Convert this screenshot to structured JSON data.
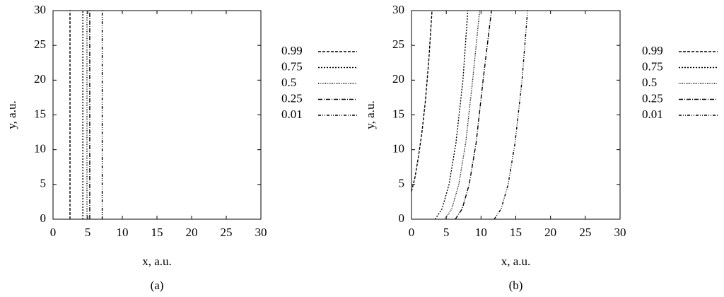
{
  "chart_data": [
    {
      "type": "line",
      "caption": "(a)",
      "x_label": "x, a.u.",
      "y_label": "y, a.u.",
      "xlim": [
        0,
        30
      ],
      "ylim": [
        0,
        30
      ],
      "xticks": [
        0,
        5,
        10,
        15,
        20,
        25,
        30
      ],
      "yticks": [
        0,
        5,
        10,
        15,
        20,
        25,
        30
      ],
      "series": [
        {
          "name": "0.99",
          "color": "#000000",
          "dash": "4,2",
          "x": [
            2.45,
            2.45
          ],
          "values": [
            0,
            30
          ]
        },
        {
          "name": "0.75",
          "color": "#000000",
          "dash": "2,2",
          "x": [
            4.3,
            4.3
          ],
          "values": [
            0,
            30
          ]
        },
        {
          "name": "0.5",
          "color": "#000000",
          "dash": "1,1.5",
          "x": [
            4.9,
            4.9
          ],
          "values": [
            0,
            30
          ]
        },
        {
          "name": "0.25",
          "color": "#000000",
          "dash": "6,2,1,2",
          "x": [
            5.3,
            5.3
          ],
          "values": [
            0,
            30
          ]
        },
        {
          "name": "0.01",
          "color": "#000000",
          "dash": "4,2,1,2,1,2",
          "x": [
            7.1,
            7.1
          ],
          "values": [
            0,
            30
          ]
        }
      ]
    },
    {
      "type": "line",
      "caption": "(b)",
      "x_label": "x, a.u.",
      "y_label": "y, a.u.",
      "xlim": [
        0,
        30
      ],
      "ylim": [
        0,
        30
      ],
      "xticks": [
        0,
        5,
        10,
        15,
        20,
        25,
        30
      ],
      "yticks": [
        0,
        5,
        10,
        15,
        20,
        25,
        30
      ],
      "series": [
        {
          "name": "0.99",
          "color": "#000000",
          "dash": "4,2",
          "x": [
            0,
            0.5,
            1,
            1.5,
            2,
            2.5,
            2.95
          ],
          "values": [
            4,
            6,
            9,
            12.5,
            17,
            23,
            30
          ]
        },
        {
          "name": "0.75",
          "color": "#000000",
          "dash": "2,2",
          "x": [
            3.4,
            4.4,
            5.4,
            6.4,
            7.4,
            8.1
          ],
          "values": [
            0,
            1.5,
            5,
            11,
            20,
            30
          ]
        },
        {
          "name": "0.5",
          "color": "#000000",
          "dash": "1,1.5",
          "x": [
            4.8,
            5.8,
            6.8,
            7.8,
            8.8,
            9.8
          ],
          "values": [
            0,
            1.5,
            5,
            11,
            20,
            30
          ]
        },
        {
          "name": "0.25",
          "color": "#000000",
          "dash": "6,2,1,2",
          "x": [
            6.3,
            7.3,
            8.3,
            9.3,
            10.3,
            11.5
          ],
          "values": [
            0,
            1.5,
            5,
            11,
            20,
            30
          ]
        },
        {
          "name": "0.01",
          "color": "#000000",
          "dash": "4,2,1,2,1,2",
          "x": [
            11.9,
            12.9,
            13.9,
            14.9,
            15.9,
            16.7
          ],
          "values": [
            0,
            1.5,
            5,
            11,
            20,
            30
          ]
        }
      ]
    }
  ]
}
